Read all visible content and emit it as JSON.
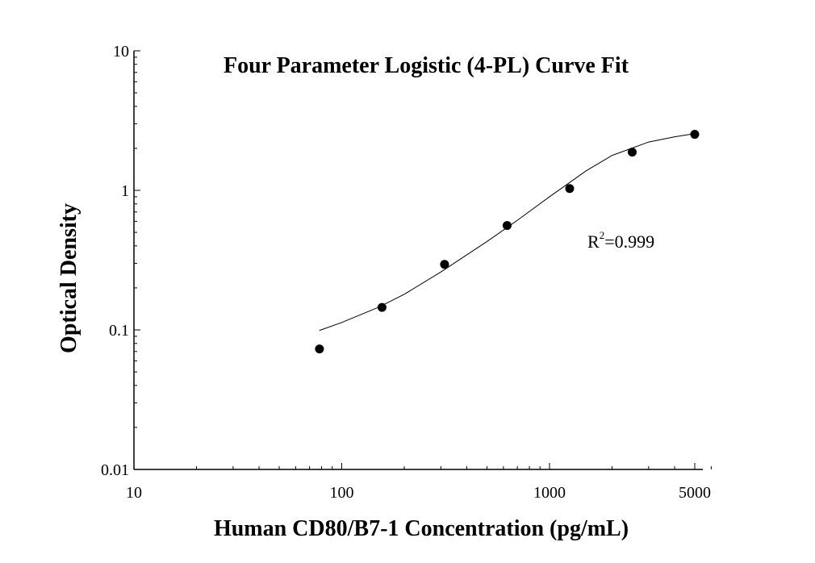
{
  "chart_data": {
    "type": "scatter",
    "title": "Four Parameter Logistic (4-PL) Curve Fit",
    "xlabel": "Human CD80/B7-1 Concentration (pg/mL)",
    "ylabel": "Optical Density",
    "xscale": "log",
    "yscale": "log",
    "xlim": [
      10,
      6000
    ],
    "ylim": [
      0.01,
      10
    ],
    "x_ticks": [
      10,
      100,
      1000,
      5000
    ],
    "x_tick_labels": [
      "10",
      "100",
      "1000",
      "5000"
    ],
    "y_ticks": [
      0.01,
      0.1,
      1,
      10
    ],
    "y_tick_labels": [
      "0.01",
      "0.1",
      "1",
      "10"
    ],
    "grid": false,
    "points": {
      "x": [
        78.125,
        156.25,
        312.5,
        625,
        1250,
        2500,
        5000
      ],
      "y": [
        0.073,
        0.145,
        0.295,
        0.56,
        1.03,
        1.88,
        2.52
      ]
    },
    "fit": {
      "model": "4-PL",
      "x": [
        78,
        100,
        150,
        200,
        300,
        400,
        500,
        700,
        1000,
        1500,
        2000,
        3000,
        4000,
        5000
      ],
      "y": [
        0.099,
        0.113,
        0.145,
        0.18,
        0.26,
        0.345,
        0.43,
        0.61,
        0.9,
        1.38,
        1.78,
        2.22,
        2.42,
        2.55
      ]
    },
    "annotation": {
      "label": "R",
      "superscript": "2",
      "value": "=0.999"
    }
  }
}
